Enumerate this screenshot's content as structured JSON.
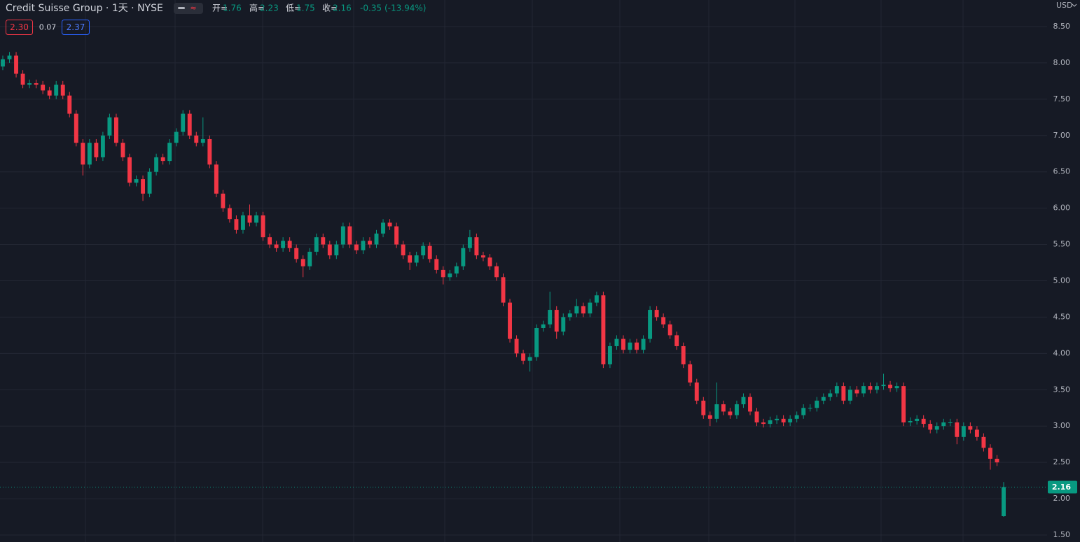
{
  "header": {
    "title": "Credit Suisse Group · 1天 · NYSE",
    "open_label": "开=",
    "high_label": "高=",
    "low_label": "低=",
    "close_label": "收=",
    "change": "-0.35",
    "change_pct": "(-13.94%)",
    "sell": "2.30",
    "spread": "0.07",
    "buy": "2.37",
    "currency": "USD"
  },
  "chart_data": {
    "type": "candlestick",
    "up_color": "#089981",
    "down_color": "#f23645",
    "grid": true,
    "ylim": [
      1.4,
      8.7
    ],
    "yticks": [
      {
        "value": 1.5,
        "label": "1.50"
      },
      {
        "value": 2,
        "label": "2.00"
      },
      {
        "value": 2.5,
        "label": "2.50"
      },
      {
        "value": 3,
        "label": "3.00"
      },
      {
        "value": 3.5,
        "label": "3.50"
      },
      {
        "value": 4,
        "label": "4.00"
      },
      {
        "value": 4.5,
        "label": "4.50"
      },
      {
        "value": 5,
        "label": "5.00"
      },
      {
        "value": 5.5,
        "label": "5.50"
      },
      {
        "value": 6,
        "label": "6.00"
      },
      {
        "value": 6.5,
        "label": "6.50"
      },
      {
        "value": 7,
        "label": "7.00"
      },
      {
        "value": 7.5,
        "label": "7.50"
      },
      {
        "value": 8,
        "label": "8.00"
      },
      {
        "value": 8.5,
        "label": "8.50"
      }
    ],
    "open": [
      7.95,
      8.05,
      8.1,
      7.85,
      7.7,
      7.72,
      7.7,
      7.62,
      7.55,
      7.7,
      7.55,
      7.3,
      6.9,
      6.6,
      6.9,
      6.7,
      7.0,
      7.25,
      6.9,
      6.7,
      6.35,
      6.4,
      6.2,
      6.5,
      6.7,
      6.65,
      6.9,
      7.05,
      7.3,
      7.0,
      6.9,
      6.95,
      6.6,
      6.2,
      6.0,
      5.85,
      5.7,
      5.9,
      5.8,
      5.9,
      5.6,
      5.5,
      5.45,
      5.55,
      5.45,
      5.3,
      5.2,
      5.4,
      5.6,
      5.5,
      5.35,
      5.5,
      5.75,
      5.5,
      5.42,
      5.55,
      5.5,
      5.65,
      5.8,
      5.75,
      5.5,
      5.35,
      5.25,
      5.35,
      5.48,
      5.3,
      5.15,
      5.05,
      5.1,
      5.2,
      5.45,
      5.6,
      5.35,
      5.32,
      5.2,
      5.05,
      4.7,
      4.2,
      4.0,
      3.9,
      3.95,
      4.35,
      4.4,
      4.6,
      4.3,
      4.5,
      4.55,
      4.65,
      4.55,
      4.7,
      4.8,
      3.85,
      4.1,
      4.2,
      4.05,
      4.15,
      4.05,
      4.2,
      4.6,
      4.5,
      4.4,
      4.25,
      4.1,
      3.85,
      3.6,
      3.35,
      3.15,
      3.1,
      3.3,
      3.2,
      3.15,
      3.3,
      3.4,
      3.2,
      3.05,
      3.03,
      3.08,
      3.1,
      3.05,
      3.1,
      3.15,
      3.25,
      3.25,
      3.35,
      3.4,
      3.45,
      3.55,
      3.35,
      3.5,
      3.45,
      3.55,
      3.5,
      3.55,
      3.57,
      3.52,
      3.55,
      3.05,
      3.07,
      3.1,
      3.03,
      2.95,
      3.0,
      3.05,
      3.05,
      2.85,
      3.0,
      2.95,
      2.85,
      2.7,
      2.55,
      1.76
    ],
    "high": [
      8.1,
      8.15,
      8.15,
      7.9,
      7.77,
      7.77,
      7.75,
      7.67,
      7.75,
      7.75,
      7.6,
      7.35,
      6.95,
      6.95,
      6.95,
      7.05,
      7.3,
      7.3,
      6.95,
      6.75,
      6.45,
      6.45,
      6.55,
      6.75,
      6.75,
      6.95,
      7.1,
      7.35,
      7.35,
      7.05,
      7.25,
      7.0,
      6.65,
      6.25,
      6.05,
      5.9,
      5.95,
      6.05,
      5.95,
      5.95,
      5.65,
      5.55,
      5.6,
      5.6,
      5.5,
      5.35,
      5.45,
      5.65,
      5.65,
      5.55,
      5.55,
      5.8,
      5.8,
      5.55,
      5.6,
      5.6,
      5.7,
      5.85,
      5.85,
      5.8,
      5.55,
      5.4,
      5.4,
      5.53,
      5.53,
      5.35,
      5.2,
      5.15,
      5.25,
      5.5,
      5.7,
      5.65,
      5.4,
      5.37,
      5.25,
      5.1,
      4.75,
      4.25,
      4.05,
      4.0,
      4.4,
      4.45,
      4.85,
      4.65,
      4.55,
      4.6,
      4.75,
      4.7,
      4.75,
      4.85,
      4.85,
      4.15,
      4.25,
      4.25,
      4.2,
      4.2,
      4.25,
      4.65,
      4.65,
      4.55,
      4.45,
      4.3,
      4.15,
      3.9,
      3.65,
      3.4,
      3.2,
      3.6,
      3.35,
      3.25,
      3.35,
      3.45,
      3.45,
      3.25,
      3.1,
      3.13,
      3.15,
      3.15,
      3.15,
      3.2,
      3.3,
      3.3,
      3.4,
      3.45,
      3.5,
      3.6,
      3.6,
      3.55,
      3.55,
      3.6,
      3.6,
      3.6,
      3.72,
      3.62,
      3.6,
      3.6,
      3.12,
      3.15,
      3.15,
      3.08,
      3.05,
      3.1,
      3.1,
      3.1,
      3.05,
      3.05,
      3.0,
      2.9,
      2.75,
      2.6,
      2.23
    ],
    "low": [
      7.9,
      8.0,
      7.8,
      7.65,
      7.65,
      7.65,
      7.57,
      7.5,
      7.5,
      7.5,
      7.25,
      6.85,
      6.45,
      6.55,
      6.65,
      6.65,
      6.95,
      6.85,
      6.65,
      6.3,
      6.3,
      6.1,
      6.15,
      6.45,
      6.6,
      6.6,
      6.85,
      7.0,
      6.95,
      6.85,
      6.85,
      6.55,
      6.15,
      5.95,
      5.8,
      5.65,
      5.65,
      5.75,
      5.75,
      5.55,
      5.45,
      5.4,
      5.4,
      5.4,
      5.25,
      5.05,
      5.15,
      5.35,
      5.45,
      5.3,
      5.3,
      5.45,
      5.45,
      5.37,
      5.37,
      5.45,
      5.45,
      5.6,
      5.7,
      5.45,
      5.3,
      5.15,
      5.2,
      5.3,
      5.25,
      5.1,
      4.95,
      5.0,
      5.05,
      5.15,
      5.4,
      5.3,
      5.27,
      5.15,
      5.0,
      4.65,
      4.15,
      3.95,
      3.85,
      3.75,
      3.9,
      4.3,
      4.35,
      4.2,
      4.25,
      4.45,
      4.5,
      4.5,
      4.5,
      4.65,
      3.8,
      3.8,
      4.05,
      4.0,
      4.0,
      4.0,
      4.0,
      4.15,
      4.45,
      4.35,
      4.2,
      4.05,
      3.8,
      3.55,
      3.3,
      3.1,
      3.0,
      3.05,
      3.15,
      3.1,
      3.1,
      3.25,
      3.15,
      3.0,
      2.98,
      2.98,
      3.03,
      3.0,
      3.0,
      3.05,
      3.1,
      3.2,
      3.2,
      3.3,
      3.35,
      3.4,
      3.3,
      3.3,
      3.4,
      3.4,
      3.45,
      3.45,
      3.5,
      3.47,
      3.47,
      3.0,
      3.0,
      3.02,
      2.98,
      2.9,
      2.9,
      2.95,
      3.0,
      2.75,
      2.8,
      2.9,
      2.8,
      2.65,
      2.4,
      2.45,
      1.75
    ],
    "close": [
      8.05,
      8.1,
      7.85,
      7.7,
      7.72,
      7.7,
      7.62,
      7.55,
      7.7,
      7.55,
      7.3,
      6.9,
      6.6,
      6.9,
      6.7,
      7.0,
      7.25,
      6.9,
      6.7,
      6.35,
      6.4,
      6.2,
      6.5,
      6.7,
      6.65,
      6.9,
      7.05,
      7.3,
      7.0,
      6.9,
      6.95,
      6.6,
      6.2,
      6.0,
      5.85,
      5.7,
      5.9,
      5.8,
      5.9,
      5.6,
      5.5,
      5.45,
      5.55,
      5.45,
      5.3,
      5.2,
      5.4,
      5.6,
      5.5,
      5.35,
      5.5,
      5.75,
      5.5,
      5.42,
      5.55,
      5.5,
      5.65,
      5.8,
      5.75,
      5.5,
      5.35,
      5.25,
      5.35,
      5.48,
      5.3,
      5.15,
      5.05,
      5.1,
      5.2,
      5.45,
      5.6,
      5.35,
      5.32,
      5.2,
      5.05,
      4.7,
      4.2,
      4.0,
      3.9,
      3.95,
      4.35,
      4.4,
      4.6,
      4.3,
      4.5,
      4.55,
      4.65,
      4.55,
      4.7,
      4.8,
      3.85,
      4.1,
      4.2,
      4.05,
      4.15,
      4.05,
      4.2,
      4.6,
      4.5,
      4.4,
      4.25,
      4.1,
      3.85,
      3.6,
      3.35,
      3.15,
      3.1,
      3.3,
      3.2,
      3.15,
      3.3,
      3.4,
      3.2,
      3.05,
      3.03,
      3.08,
      3.1,
      3.05,
      3.1,
      3.15,
      3.25,
      3.25,
      3.35,
      3.4,
      3.45,
      3.55,
      3.35,
      3.5,
      3.45,
      3.55,
      3.5,
      3.55,
      3.57,
      3.52,
      3.55,
      3.05,
      3.07,
      3.1,
      3.03,
      2.95,
      3.0,
      3.05,
      3.05,
      2.85,
      3.0,
      2.95,
      2.85,
      2.7,
      2.55,
      2.5,
      2.16
    ]
  }
}
